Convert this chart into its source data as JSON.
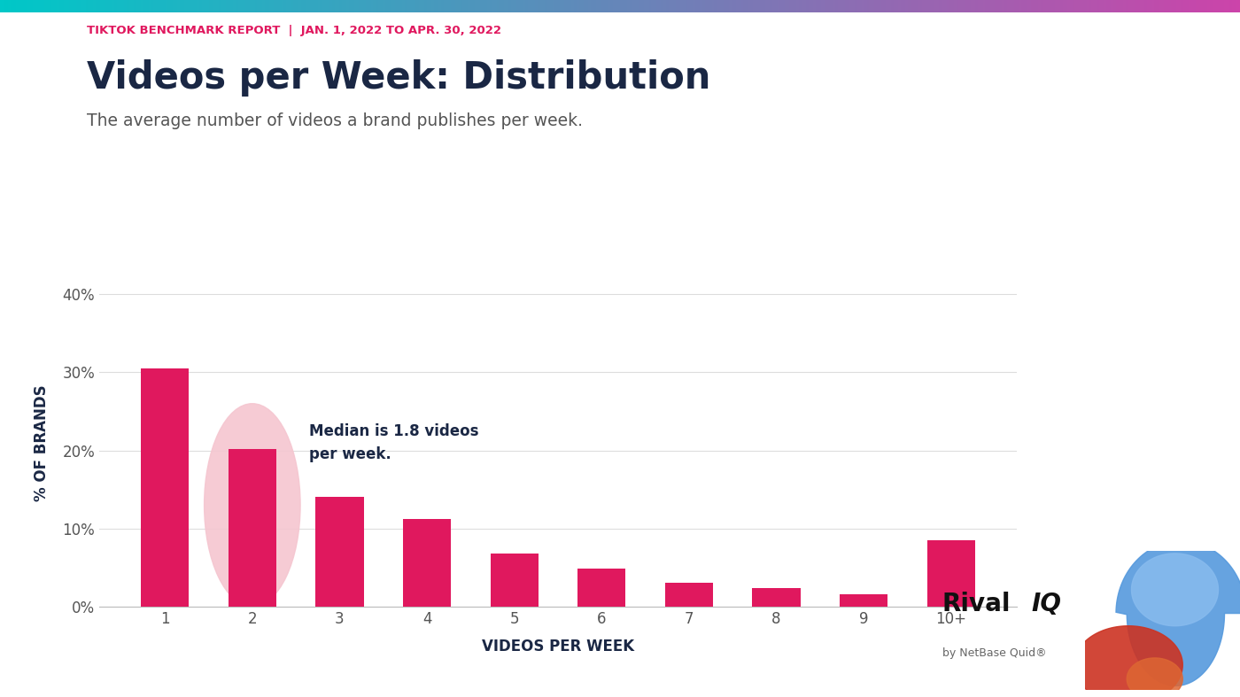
{
  "supertitle": "TIKTOK BENCHMARK REPORT  |  JAN. 1, 2022 TO APR. 30, 2022",
  "title": "Videos per Week: Distribution",
  "subtitle": "The average number of videos a brand publishes per week.",
  "xlabel": "VIDEOS PER WEEK",
  "ylabel": "% OF BRANDS",
  "categories": [
    "1",
    "2",
    "3",
    "4",
    "5",
    "6",
    "7",
    "8",
    "9",
    "10+"
  ],
  "values": [
    30.5,
    20.2,
    14.0,
    11.2,
    6.8,
    4.8,
    3.0,
    2.3,
    1.5,
    8.5
  ],
  "bar_color": "#e0185e",
  "background_color": "#ffffff",
  "ylim": [
    0,
    42
  ],
  "yticks": [
    0,
    10,
    20,
    30,
    40
  ],
  "ytick_labels": [
    "0%",
    "10%",
    "20%",
    "30%",
    "40%"
  ],
  "median_annotation_line1": "Median is 1.8 videos",
  "median_annotation_line2": "per week.",
  "median_bar_index": 1,
  "circle_color": "#f5c6d0",
  "supertitle_color": "#e0185e",
  "title_color": "#1a2744",
  "subtitle_color": "#555555",
  "axis_label_color": "#1a2744",
  "annotation_color": "#1a2744",
  "tick_color": "#555555",
  "netbase_text": "by NetBase Quid®",
  "gradient_left": "#00c8c8",
  "gradient_right": "#cc44aa",
  "rival_color": "#111111",
  "iq_color": "#111111"
}
